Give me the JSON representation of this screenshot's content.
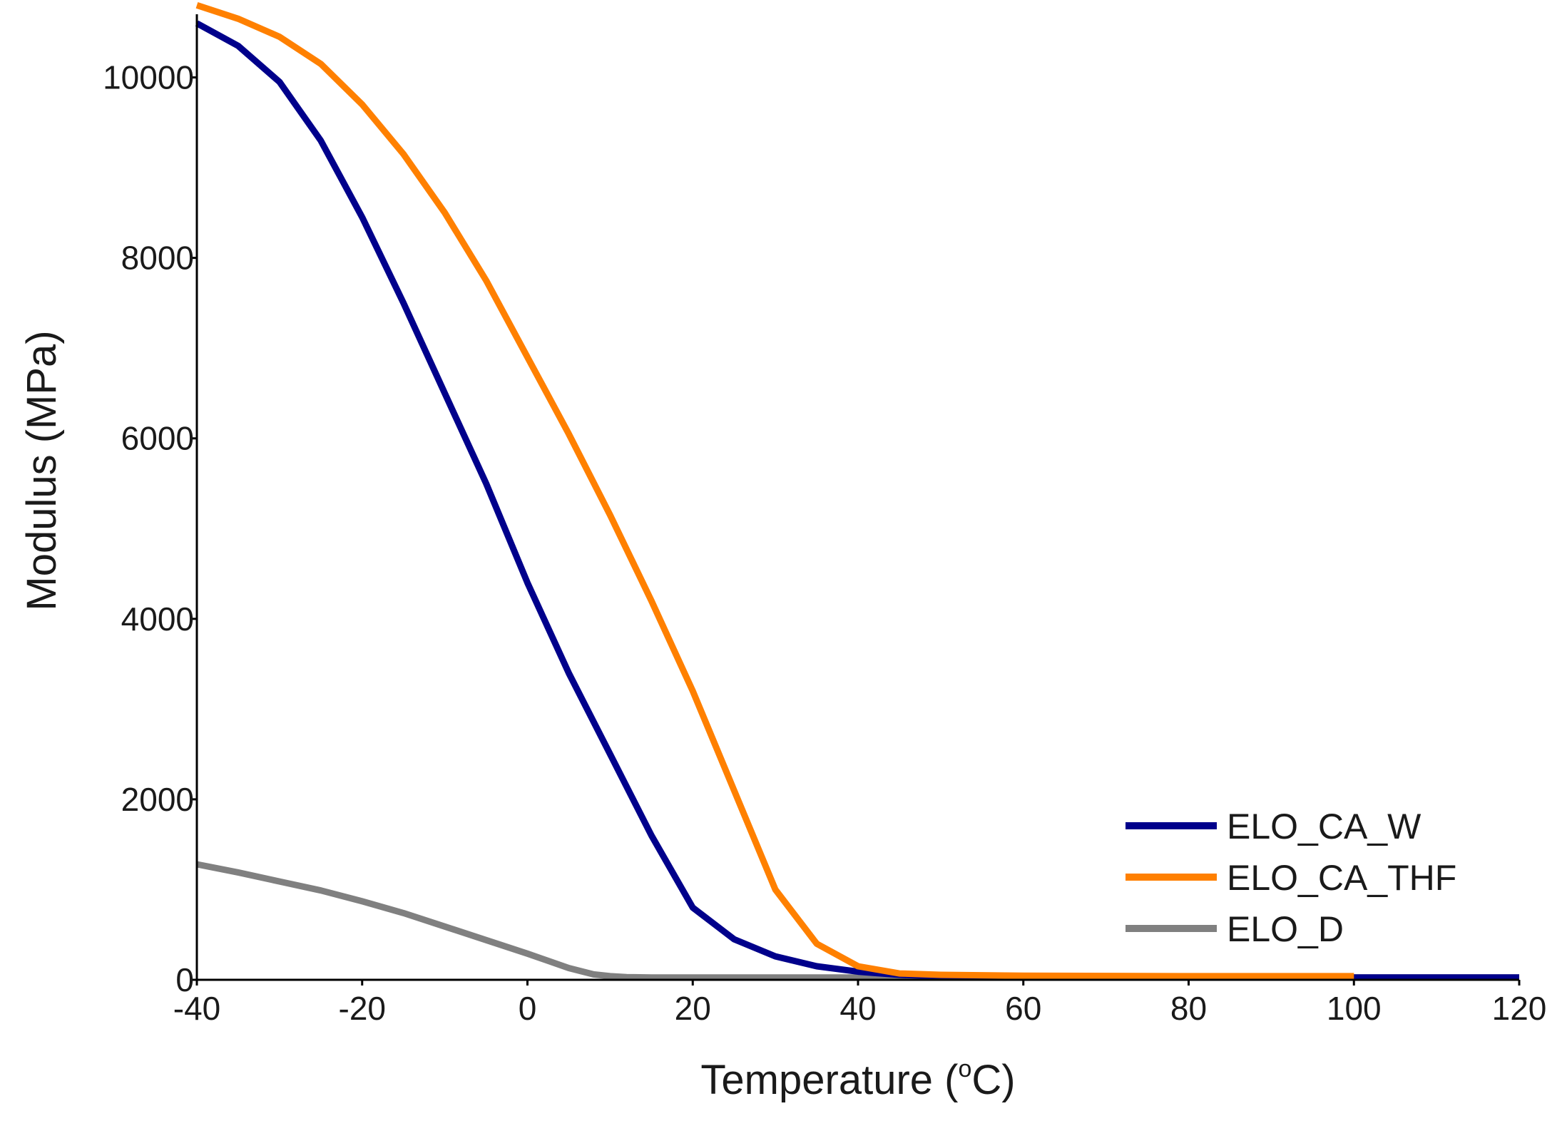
{
  "chart_data": {
    "type": "line",
    "title": "",
    "xlabel": "Temperature (°C)",
    "xlabel_main": "Temperature (",
    "xlabel_degree": "o",
    "xlabel_unit": "C)",
    "ylabel": "Modulus (MPa)",
    "xlim": [
      -40,
      120
    ],
    "ylim": [
      0,
      10700
    ],
    "xticks": [
      -40,
      -20,
      0,
      20,
      40,
      60,
      80,
      100,
      120
    ],
    "xtick_labels": [
      "-40",
      "-20",
      "0",
      "20",
      "40",
      "60",
      "80",
      "100",
      "120"
    ],
    "yticks": [
      0,
      2000,
      4000,
      6000,
      8000,
      10000
    ],
    "ytick_labels": [
      "0",
      "2000",
      "4000",
      "6000",
      "8000",
      "10000"
    ],
    "legend_position": "bottom-right",
    "series": [
      {
        "name": "ELO_CA_W",
        "color": "#00008B",
        "x": [
          -40,
          -35,
          -30,
          -25,
          -20,
          -15,
          -10,
          -5,
          0,
          5,
          10,
          15,
          20,
          25,
          30,
          35,
          40,
          45,
          50,
          60,
          80,
          100,
          120
        ],
        "y": [
          10600,
          10350,
          9950,
          9300,
          8450,
          7500,
          6500,
          5500,
          4400,
          3400,
          2500,
          1600,
          800,
          450,
          260,
          150,
          90,
          55,
          40,
          30,
          25,
          25,
          25
        ]
      },
      {
        "name": "ELO_CA_THF",
        "color": "#FF8000",
        "x": [
          -40,
          -35,
          -30,
          -25,
          -20,
          -15,
          -10,
          -5,
          0,
          5,
          10,
          15,
          20,
          25,
          30,
          35,
          40,
          45,
          50,
          60,
          80,
          100
        ],
        "y": [
          10800,
          10650,
          10450,
          10150,
          9700,
          9150,
          8500,
          7750,
          6900,
          6050,
          5150,
          4200,
          3200,
          2100,
          1000,
          400,
          150,
          70,
          55,
          45,
          40,
          40
        ]
      },
      {
        "name": "ELO_D",
        "color": "#808080",
        "x": [
          -40,
          -35,
          -30,
          -25,
          -20,
          -15,
          -10,
          -5,
          0,
          5,
          8,
          10,
          12,
          15,
          20,
          30,
          40,
          60,
          80,
          100,
          120
        ],
        "y": [
          1280,
          1190,
          1090,
          990,
          870,
          740,
          590,
          440,
          290,
          130,
          60,
          40,
          30,
          25,
          25,
          25,
          25,
          25,
          25,
          25,
          25
        ]
      }
    ]
  }
}
